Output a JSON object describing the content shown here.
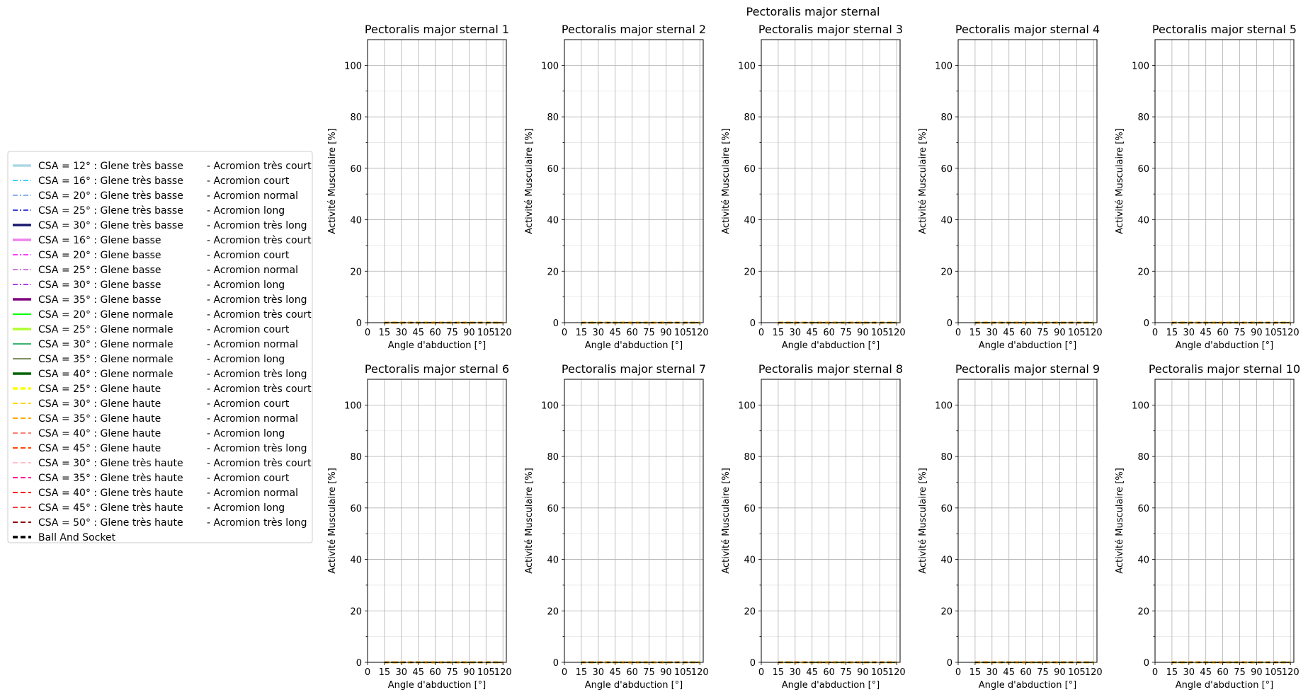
{
  "figure": {
    "suptitle": "Pectoralis major sternal"
  },
  "legend": {
    "placement": "left",
    "entries": [
      {
        "label": "CSA = 12° : Glene très basse",
        "suffix": "-  Acromion très court",
        "color": "#add8e6",
        "dash": "solid",
        "width": 3.5
      },
      {
        "label": "CSA = 16° : Glene très basse",
        "suffix": "-  Acromion court",
        "color": "#00bfff",
        "dash": "dashdot",
        "width": 1.5
      },
      {
        "label": "CSA = 20° : Glene très basse",
        "suffix": "-  Acromion normal",
        "color": "#6495ed",
        "dash": "dashdot",
        "width": 1.5
      },
      {
        "label": "CSA = 25° : Glene très basse",
        "suffix": "-  Acromion long",
        "color": "#0000cd",
        "dash": "dashdot",
        "width": 1.5
      },
      {
        "label": "CSA = 30° : Glene très basse",
        "suffix": "-  Acromion très long",
        "color": "#191970",
        "dash": "solid",
        "width": 3.5
      },
      {
        "label": "CSA = 16° : Glene basse",
        "suffix": "-  Acromion très court",
        "color": "#ee82ee",
        "dash": "solid",
        "width": 3.5
      },
      {
        "label": "CSA = 20° : Glene basse",
        "suffix": "-  Acromion court",
        "color": "#ff00ff",
        "dash": "dashdot",
        "width": 1.5
      },
      {
        "label": "CSA = 25° : Glene basse",
        "suffix": "-  Acromion normal",
        "color": "#ba55d3",
        "dash": "dashdot",
        "width": 1.5
      },
      {
        "label": "CSA = 30° : Glene basse",
        "suffix": "-  Acromion long",
        "color": "#9400d3",
        "dash": "dashdot",
        "width": 1.5
      },
      {
        "label": "CSA = 35° : Glene basse",
        "suffix": "-  Acromion très long",
        "color": "#800080",
        "dash": "solid",
        "width": 3.5
      },
      {
        "label": "CSA = 20° : Glene normale",
        "suffix": "-  Acromion très court",
        "color": "#00ff00",
        "dash": "solid",
        "width": 2
      },
      {
        "label": "CSA = 25° : Glene normale",
        "suffix": "-  Acromion court",
        "color": "#adff2f",
        "dash": "solid",
        "width": 3.5
      },
      {
        "label": "CSA = 30° : Glene normale",
        "suffix": "-  Acromion normal",
        "color": "#3cb371",
        "dash": "solid",
        "width": 2
      },
      {
        "label": "CSA = 35° : Glene normale",
        "suffix": "-  Acromion long",
        "color": "#556b2f",
        "dash": "solid",
        "width": 1.5
      },
      {
        "label": "CSA = 40° : Glene normale",
        "suffix": "-  Acromion très long",
        "color": "#006400",
        "dash": "solid",
        "width": 3.5
      },
      {
        "label": "CSA = 25° : Glene haute",
        "suffix": "-  Acromion très court",
        "color": "#ffff00",
        "dash": "dashed",
        "width": 3.5
      },
      {
        "label": "CSA = 30° : Glene haute",
        "suffix": "-  Acromion court",
        "color": "#ffd700",
        "dash": "dashed",
        "width": 2
      },
      {
        "label": "CSA = 35° : Glene haute",
        "suffix": "-  Acromion normal",
        "color": "#ffa500",
        "dash": "dashed",
        "width": 2
      },
      {
        "label": "CSA = 40° : Glene haute",
        "suffix": "-  Acromion long",
        "color": "#fa8072",
        "dash": "dashed",
        "width": 2
      },
      {
        "label": "CSA = 45° : Glene haute",
        "suffix": "-  Acromion très long",
        "color": "#ff4500",
        "dash": "dashed",
        "width": 2
      },
      {
        "label": "CSA = 30° : Glene très haute",
        "suffix": "-  Acromion très court",
        "color": "#ffc0cb",
        "dash": "dashed",
        "width": 2
      },
      {
        "label": "CSA = 35° : Glene très haute",
        "suffix": "-  Acromion court",
        "color": "#ff1493",
        "dash": "dashed",
        "width": 2
      },
      {
        "label": "CSA = 40° : Glene très haute",
        "suffix": "-  Acromion normal",
        "color": "#ff0000",
        "dash": "dashed",
        "width": 2
      },
      {
        "label": "CSA = 45° : Glene très haute",
        "suffix": "-  Acromion long",
        "color": "#f04040",
        "dash": "dashed",
        "width": 2
      },
      {
        "label": "CSA = 50° : Glene très haute",
        "suffix": "-  Acromion très long",
        "color": "#8b0000",
        "dash": "dashed",
        "width": 2
      },
      {
        "label": "Ball And Socket",
        "suffix": "",
        "color": "#000000",
        "dash": "dashed",
        "width": 3.5
      }
    ]
  },
  "chart_data": [
    {
      "type": "line",
      "title": "Pectoralis major sternal 1",
      "xlabel": "Angle d'abduction [°]",
      "ylabel": "Activité Musculaire [%]",
      "xlim": [
        0,
        123
      ],
      "ylim": [
        0,
        110
      ],
      "xticks": [
        0,
        15,
        30,
        45,
        60,
        75,
        90,
        105,
        120
      ],
      "yticks": [
        0,
        20,
        40,
        60,
        80,
        100
      ],
      "grid": true,
      "x": [
        15,
        30,
        45,
        60,
        75,
        90,
        105,
        120
      ],
      "series_value": 0
    },
    {
      "type": "line",
      "title": "Pectoralis major sternal 2",
      "xlabel": "Angle d'abduction [°]",
      "ylabel": "Activité Musculaire [%]",
      "xlim": [
        0,
        123
      ],
      "ylim": [
        0,
        110
      ],
      "xticks": [
        0,
        15,
        30,
        45,
        60,
        75,
        90,
        105,
        120
      ],
      "yticks": [
        0,
        20,
        40,
        60,
        80,
        100
      ],
      "grid": true,
      "x": [
        15,
        30,
        45,
        60,
        75,
        90,
        105,
        120
      ],
      "series_value": 0
    },
    {
      "type": "line",
      "title": "Pectoralis major sternal 3",
      "xlabel": "Angle d'abduction [°]",
      "ylabel": "Activité Musculaire [%]",
      "xlim": [
        0,
        123
      ],
      "ylim": [
        0,
        110
      ],
      "xticks": [
        0,
        15,
        30,
        45,
        60,
        75,
        90,
        105,
        120
      ],
      "yticks": [
        0,
        20,
        40,
        60,
        80,
        100
      ],
      "grid": true,
      "x": [
        15,
        30,
        45,
        60,
        75,
        90,
        105,
        120
      ],
      "series_value": 0
    },
    {
      "type": "line",
      "title": "Pectoralis major sternal 4",
      "xlabel": "Angle d'abduction [°]",
      "ylabel": "Activité Musculaire [%]",
      "xlim": [
        0,
        123
      ],
      "ylim": [
        0,
        110
      ],
      "xticks": [
        0,
        15,
        30,
        45,
        60,
        75,
        90,
        105,
        120
      ],
      "yticks": [
        0,
        20,
        40,
        60,
        80,
        100
      ],
      "grid": true,
      "x": [
        15,
        30,
        45,
        60,
        75,
        90,
        105,
        120
      ],
      "series_value": 0
    },
    {
      "type": "line",
      "title": "Pectoralis major sternal 5",
      "xlabel": "Angle d'abduction [°]",
      "ylabel": "Activité Musculaire [%]",
      "xlim": [
        0,
        123
      ],
      "ylim": [
        0,
        110
      ],
      "xticks": [
        0,
        15,
        30,
        45,
        60,
        75,
        90,
        105,
        120
      ],
      "yticks": [
        0,
        20,
        40,
        60,
        80,
        100
      ],
      "grid": true,
      "x": [
        15,
        30,
        45,
        60,
        75,
        90,
        105,
        120
      ],
      "series_value": 0
    },
    {
      "type": "line",
      "title": "Pectoralis major sternal 6",
      "xlabel": "Angle d'abduction [°]",
      "ylabel": "Activité Musculaire [%]",
      "xlim": [
        0,
        123
      ],
      "ylim": [
        0,
        110
      ],
      "xticks": [
        0,
        15,
        30,
        45,
        60,
        75,
        90,
        105,
        120
      ],
      "yticks": [
        0,
        20,
        40,
        60,
        80,
        100
      ],
      "grid": true,
      "x": [
        15,
        30,
        45,
        60,
        75,
        90,
        105,
        120
      ],
      "series_value": 0
    },
    {
      "type": "line",
      "title": "Pectoralis major sternal 7",
      "xlabel": "Angle d'abduction [°]",
      "ylabel": "Activité Musculaire [%]",
      "xlim": [
        0,
        123
      ],
      "ylim": [
        0,
        110
      ],
      "xticks": [
        0,
        15,
        30,
        45,
        60,
        75,
        90,
        105,
        120
      ],
      "yticks": [
        0,
        20,
        40,
        60,
        80,
        100
      ],
      "grid": true,
      "x": [
        15,
        30,
        45,
        60,
        75,
        90,
        105,
        120
      ],
      "series_value": 0
    },
    {
      "type": "line",
      "title": "Pectoralis major sternal 8",
      "xlabel": "Angle d'abduction [°]",
      "ylabel": "Activité Musculaire [%]",
      "xlim": [
        0,
        123
      ],
      "ylim": [
        0,
        110
      ],
      "xticks": [
        0,
        15,
        30,
        45,
        60,
        75,
        90,
        105,
        120
      ],
      "yticks": [
        0,
        20,
        40,
        60,
        80,
        100
      ],
      "grid": true,
      "x": [
        15,
        30,
        45,
        60,
        75,
        90,
        105,
        120
      ],
      "series_value": 0
    },
    {
      "type": "line",
      "title": "Pectoralis major sternal 9",
      "xlabel": "Angle d'abduction [°]",
      "ylabel": "Activité Musculaire [%]",
      "xlim": [
        0,
        123
      ],
      "ylim": [
        0,
        110
      ],
      "xticks": [
        0,
        15,
        30,
        45,
        60,
        75,
        90,
        105,
        120
      ],
      "yticks": [
        0,
        20,
        40,
        60,
        80,
        100
      ],
      "grid": true,
      "x": [
        15,
        30,
        45,
        60,
        75,
        90,
        105,
        120
      ],
      "series_value": 0
    },
    {
      "type": "line",
      "title": "Pectoralis major sternal 10",
      "xlabel": "Angle d'abduction [°]",
      "ylabel": "Activité Musculaire [%]",
      "xlim": [
        0,
        123
      ],
      "ylim": [
        0,
        110
      ],
      "xticks": [
        0,
        15,
        30,
        45,
        60,
        75,
        90,
        105,
        120
      ],
      "yticks": [
        0,
        20,
        40,
        60,
        80,
        100
      ],
      "grid": true,
      "x": [
        15,
        30,
        45,
        60,
        75,
        90,
        105,
        120
      ],
      "series_value": 0
    }
  ]
}
